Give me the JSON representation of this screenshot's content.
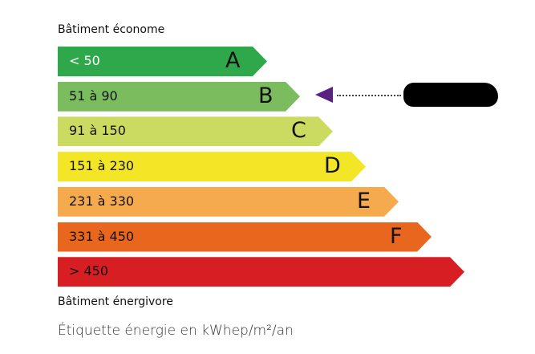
{
  "header": {
    "top_label": "Bâtiment économe",
    "bottom_label": "Bâtiment énergivore",
    "caption": "Étiquette énergie en kWhep/m²/an"
  },
  "classes": [
    {
      "range": "< 50",
      "letter": "A",
      "color": "#2ea84a",
      "text_color": "#ffffff"
    },
    {
      "range": "51 à 90",
      "letter": "B",
      "color": "#7bbd5e",
      "text_color": "#111111"
    },
    {
      "range": "91 à 150",
      "letter": "C",
      "color": "#cbdb61",
      "text_color": "#111111"
    },
    {
      "range": "151 à 230",
      "letter": "D",
      "color": "#f2e626",
      "text_color": "#111111"
    },
    {
      "range": "231 à 330",
      "letter": "E",
      "color": "#f5ab4d",
      "text_color": "#111111"
    },
    {
      "range": "331 à 450",
      "letter": "F",
      "color": "#e8661e",
      "text_color": "#111111"
    },
    {
      "range": "> 450",
      "letter": "",
      "color": "#d71e22",
      "text_color": "#111111"
    }
  ],
  "indicator": {
    "class": "B",
    "color": "#5b2182"
  }
}
